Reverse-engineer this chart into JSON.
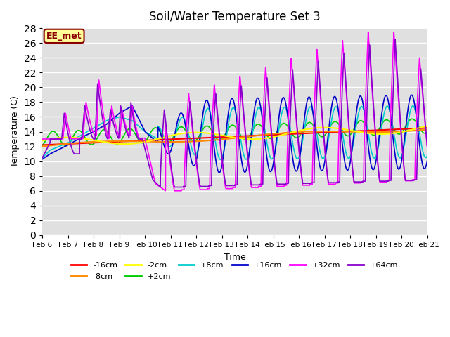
{
  "title": "Soil/Water Temperature Set 3",
  "xlabel": "Time",
  "ylabel": "Temperature (C)",
  "ylim": [
    0,
    28
  ],
  "yticks": [
    0,
    2,
    4,
    6,
    8,
    10,
    12,
    14,
    16,
    18,
    20,
    22,
    24,
    26,
    28
  ],
  "xtick_labels": [
    "Feb 6",
    "Feb 7",
    "Feb 8",
    "Feb 9",
    "Feb 10",
    "Feb 11",
    "Feb 12",
    "Feb 13",
    "Feb 14",
    "Feb 15",
    "Feb 16",
    "Feb 17",
    "Feb 18",
    "Feb 19",
    "Feb 20",
    "Feb 21"
  ],
  "bg_color": "#e0e0e0",
  "grid_color": "#ffffff",
  "annotation_text": "EE_met",
  "annotation_bg": "#ffff99",
  "annotation_border": "#8b0000",
  "series_colors": {
    "-16cm": "#ff0000",
    "-8cm": "#ff8800",
    "-2cm": "#ffff00",
    "+2cm": "#00cc00",
    "+8cm": "#00cccc",
    "+16cm": "#0000cc",
    "+32cm": "#ff00ff",
    "+64cm": "#8800cc"
  },
  "line_width": 1.2
}
